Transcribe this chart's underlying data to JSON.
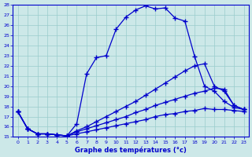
{
  "title": "",
  "xlabel": "Graphe des températures (°c)",
  "xlim": [
    -0.5,
    23.5
  ],
  "ylim": [
    15,
    28
  ],
  "yticks": [
    15,
    16,
    17,
    18,
    19,
    20,
    21,
    22,
    23,
    24,
    25,
    26,
    27,
    28
  ],
  "xticks": [
    0,
    1,
    2,
    3,
    4,
    5,
    6,
    7,
    8,
    9,
    10,
    11,
    12,
    13,
    14,
    15,
    16,
    17,
    18,
    19,
    20,
    21,
    22,
    23
  ],
  "bg_color": "#cce8e8",
  "line_color": "#0000cc",
  "grid_color": "#99cccc",
  "line1": [
    17.5,
    15.8,
    15.3,
    15.3,
    15.2,
    15.1,
    16.3,
    21.2,
    22.8,
    23.0,
    25.6,
    26.8,
    27.5,
    27.9,
    27.6,
    27.7,
    26.7,
    26.4,
    22.9,
    20.0,
    19.5,
    18.5,
    17.9,
    17.7
  ],
  "line2": [
    17.5,
    15.8,
    15.3,
    15.3,
    15.2,
    15.1,
    15.6,
    16.0,
    16.5,
    17.0,
    17.5,
    18.0,
    18.5,
    19.1,
    19.7,
    20.3,
    20.9,
    21.5,
    22.0,
    22.2,
    20.0,
    19.5,
    18.1,
    17.7
  ],
  "line3": [
    17.5,
    15.8,
    15.3,
    15.3,
    15.2,
    15.1,
    15.5,
    15.8,
    16.1,
    16.4,
    16.7,
    17.0,
    17.4,
    17.7,
    18.1,
    18.4,
    18.7,
    19.0,
    19.3,
    19.5,
    19.8,
    19.7,
    18.1,
    17.7
  ],
  "line4": [
    17.5,
    15.8,
    15.3,
    15.3,
    15.2,
    15.1,
    15.3,
    15.5,
    15.7,
    15.9,
    16.1,
    16.3,
    16.5,
    16.7,
    17.0,
    17.2,
    17.3,
    17.5,
    17.6,
    17.8,
    17.7,
    17.7,
    17.6,
    17.5
  ]
}
